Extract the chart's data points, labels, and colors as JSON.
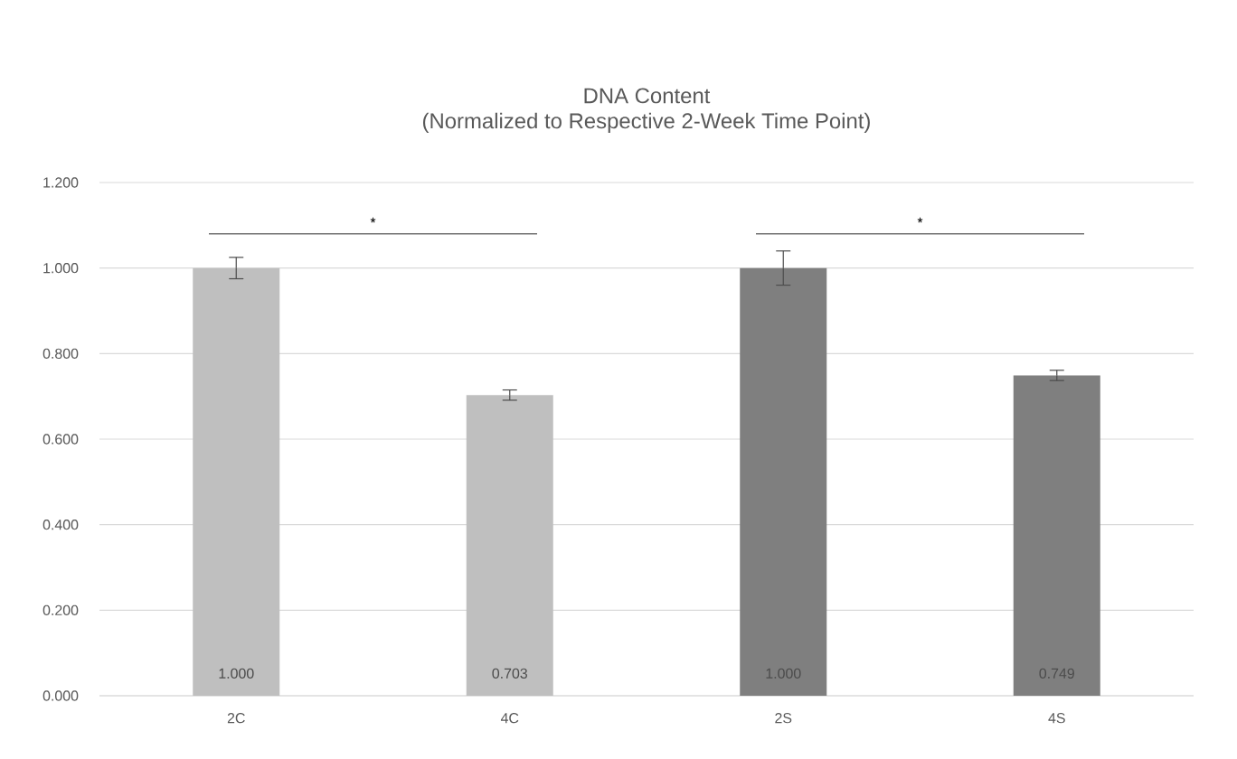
{
  "chart_data": {
    "type": "bar",
    "title": "DNA Content",
    "subtitle": "(Normalized to  Respective 2-Week Time Point)",
    "categories": [
      "2C",
      "4C",
      "2S",
      "4S"
    ],
    "values": [
      1.0,
      0.703,
      1.0,
      0.749
    ],
    "colors": [
      "#bfbfbf",
      "#bfbfbf",
      "#7f7f7f",
      "#7f7f7f"
    ],
    "errors": [
      0.025,
      0.012,
      0.04,
      0.012
    ],
    "value_labels": [
      "1.000",
      "0.703",
      "1.000",
      "0.749"
    ],
    "ylim": [
      0,
      1.2
    ],
    "yticks": [
      {
        "value": 0,
        "label": "0.000"
      },
      {
        "value": 0.2,
        "label": "0.200"
      },
      {
        "value": 0.4,
        "label": "0.400"
      },
      {
        "value": 0.6,
        "label": "0.600"
      },
      {
        "value": 0.8,
        "label": "0.800"
      },
      {
        "value": 1.0,
        "label": "1.000"
      },
      {
        "value": 1.2,
        "label": "1.200"
      }
    ],
    "grid": "y",
    "annotations": [
      "*",
      "*"
    ]
  }
}
